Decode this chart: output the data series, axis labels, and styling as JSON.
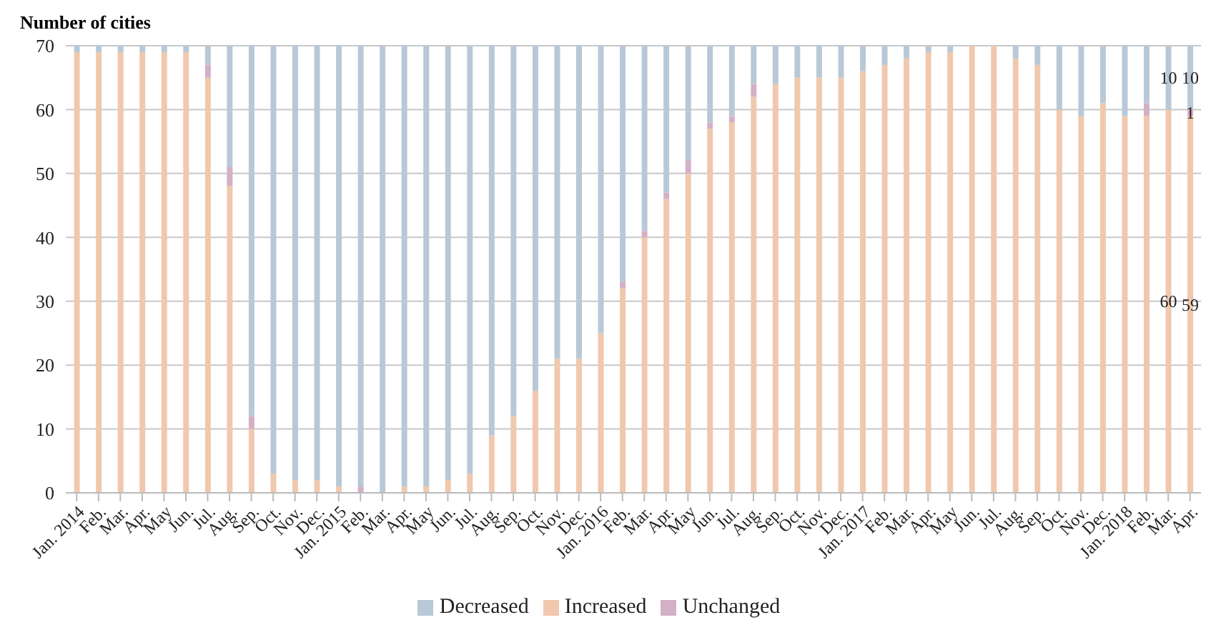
{
  "chart_data": {
    "type": "bar",
    "stacked": true,
    "ylabel": "Number of cities",
    "categories": [
      "Jan. 2014",
      "Feb.",
      "Mar.",
      "Apr.",
      "May",
      "Jun.",
      "Jul.",
      "Aug.",
      "Sep.",
      "Oct.",
      "Nov.",
      "Dec.",
      "Jan. 2015",
      "Feb.",
      "Mar.",
      "Apr.",
      "May",
      "Jun.",
      "Jul.",
      "Aug.",
      "Sep.",
      "Oct.",
      "Nov.",
      "Dec.",
      "Jan. 2016",
      "Feb.",
      "Mar.",
      "Apr.",
      "May",
      "Jun.",
      "Jul.",
      "Aug.",
      "Sep.",
      "Oct.",
      "Nov.",
      "Dec.",
      "Jan. 2017",
      "Feb.",
      "Mar.",
      "Apr.",
      "May",
      "Jun.",
      "Jul.",
      "Aug.",
      "Sep.",
      "Oct.",
      "Nov.",
      "Dec.",
      "Jan. 2018",
      "Feb.",
      "Mar.",
      "Apr."
    ],
    "series": [
      {
        "name": "Increased",
        "color": "#f0c8ad",
        "values": [
          69,
          69,
          69,
          69,
          69,
          69,
          65,
          48,
          10,
          3,
          2,
          2,
          1,
          0,
          0,
          1,
          1,
          2,
          3,
          9,
          12,
          16,
          21,
          21,
          25,
          32,
          40,
          46,
          50,
          57,
          58,
          62,
          64,
          65,
          65,
          65,
          66,
          67,
          68,
          69,
          69,
          70,
          70,
          68,
          67,
          60,
          59,
          61,
          59,
          59,
          60,
          59
        ],
        "value_labels": [
          null,
          null,
          null,
          null,
          null,
          null,
          null,
          null,
          null,
          null,
          null,
          null,
          null,
          null,
          null,
          null,
          null,
          null,
          null,
          null,
          null,
          null,
          null,
          null,
          null,
          null,
          null,
          null,
          null,
          null,
          null,
          null,
          null,
          null,
          null,
          null,
          null,
          null,
          null,
          null,
          null,
          null,
          null,
          null,
          null,
          null,
          null,
          null,
          null,
          null,
          "60",
          "59"
        ]
      },
      {
        "name": "Unchanged",
        "color": "#d4b0c6",
        "values": [
          0,
          0,
          0,
          0,
          0,
          0,
          2,
          3,
          2,
          0,
          0,
          0,
          0,
          1,
          0,
          0,
          0,
          0,
          0,
          0,
          0,
          0,
          0,
          0,
          0,
          1,
          1,
          1,
          2,
          1,
          1,
          2,
          0,
          0,
          0,
          0,
          0,
          0,
          0,
          0,
          0,
          0,
          0,
          0,
          0,
          0,
          0,
          0,
          0,
          2,
          0,
          1
        ],
        "value_labels": [
          null,
          null,
          null,
          null,
          null,
          null,
          null,
          null,
          null,
          null,
          null,
          null,
          null,
          null,
          null,
          null,
          null,
          null,
          null,
          null,
          null,
          null,
          null,
          null,
          null,
          null,
          null,
          null,
          null,
          null,
          null,
          null,
          null,
          null,
          null,
          null,
          null,
          null,
          null,
          null,
          null,
          null,
          null,
          null,
          null,
          null,
          null,
          null,
          null,
          null,
          null,
          "1"
        ]
      },
      {
        "name": "Decreased",
        "color": "#b9c8d7",
        "values": [
          1,
          1,
          1,
          1,
          1,
          1,
          3,
          19,
          58,
          67,
          68,
          68,
          69,
          69,
          70,
          69,
          69,
          68,
          67,
          61,
          58,
          54,
          49,
          49,
          45,
          37,
          29,
          23,
          18,
          12,
          11,
          6,
          6,
          5,
          5,
          5,
          4,
          3,
          2,
          1,
          1,
          0,
          0,
          2,
          3,
          10,
          11,
          9,
          11,
          9,
          10,
          10
        ],
        "value_labels": [
          null,
          null,
          null,
          null,
          null,
          null,
          null,
          null,
          null,
          null,
          null,
          null,
          null,
          null,
          null,
          null,
          null,
          null,
          null,
          null,
          null,
          null,
          null,
          null,
          null,
          null,
          null,
          null,
          null,
          null,
          null,
          null,
          null,
          null,
          null,
          null,
          null,
          null,
          null,
          null,
          null,
          null,
          null,
          null,
          null,
          null,
          null,
          null,
          null,
          null,
          "10",
          "10"
        ]
      }
    ],
    "ylim": [
      0,
      70
    ],
    "yticks": [
      0,
      10,
      20,
      30,
      40,
      50,
      60,
      70
    ],
    "grid": "y",
    "legend": "bottom"
  }
}
